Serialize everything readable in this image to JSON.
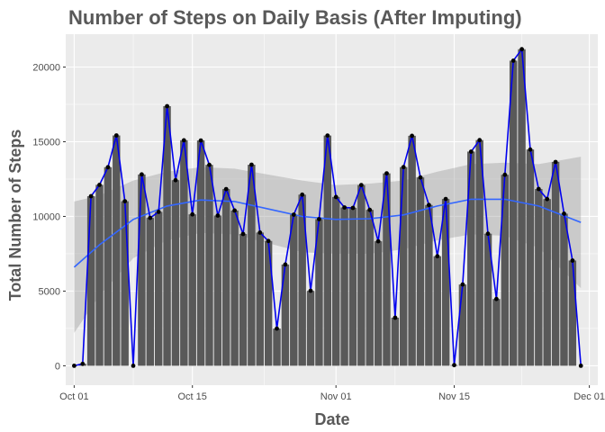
{
  "chart_data": {
    "type": "bar",
    "title": "Number of Steps on Daily Basis (After Imputing)",
    "xlabel": "Date",
    "ylabel": "Total Number of Steps",
    "ylim": [
      -1300,
      22200
    ],
    "xlim": [
      "2012-09-30",
      "2012-12-02"
    ],
    "grid": true,
    "x_ticks": [
      {
        "date": "2012-10-01",
        "label": "Oct 01"
      },
      {
        "date": "2012-10-15",
        "label": "Oct 15"
      },
      {
        "date": "2012-11-01",
        "label": "Nov 01"
      },
      {
        "date": "2012-11-15",
        "label": "Nov 15"
      },
      {
        "date": "2012-12-01",
        "label": "Dec 01"
      }
    ],
    "y_ticks": [
      0,
      5000,
      10000,
      15000,
      20000
    ],
    "series": [
      {
        "type": "bar",
        "dates": [
          "2012-10-01",
          "2012-10-02",
          "2012-10-03",
          "2012-10-04",
          "2012-10-05",
          "2012-10-06",
          "2012-10-07",
          "2012-10-08",
          "2012-10-09",
          "2012-10-10",
          "2012-10-11",
          "2012-10-12",
          "2012-10-13",
          "2012-10-14",
          "2012-10-15",
          "2012-10-16",
          "2012-10-17",
          "2012-10-18",
          "2012-10-19",
          "2012-10-20",
          "2012-10-21",
          "2012-10-22",
          "2012-10-23",
          "2012-10-24",
          "2012-10-25",
          "2012-10-26",
          "2012-10-27",
          "2012-10-28",
          "2012-10-29",
          "2012-10-30",
          "2012-10-31",
          "2012-11-01",
          "2012-11-02",
          "2012-11-03",
          "2012-11-04",
          "2012-11-05",
          "2012-11-06",
          "2012-11-07",
          "2012-11-08",
          "2012-11-09",
          "2012-11-10",
          "2012-11-11",
          "2012-11-12",
          "2012-11-13",
          "2012-11-14",
          "2012-11-15",
          "2012-11-16",
          "2012-11-17",
          "2012-11-18",
          "2012-11-19",
          "2012-11-20",
          "2012-11-21",
          "2012-11-22",
          "2012-11-23",
          "2012-11-24",
          "2012-11-25",
          "2012-11-26",
          "2012-11-27",
          "2012-11-28",
          "2012-11-29",
          "2012-11-30"
        ],
        "values": [
          0,
          126,
          11352,
          12116,
          13294,
          15420,
          11015,
          0,
          12811,
          9900,
          10304,
          17382,
          12426,
          15098,
          10139,
          15084,
          13452,
          10056,
          11829,
          10395,
          8821,
          13460,
          8918,
          8355,
          2492,
          6778,
          10119,
          11458,
          5018,
          9819,
          15414,
          11300,
          10600,
          10571,
          12100,
          10439,
          8334,
          12883,
          3219,
          13300,
          15400,
          12608,
          10765,
          7336,
          11165,
          41,
          5441,
          14339,
          15110,
          8841,
          4472,
          12787,
          20427,
          21194,
          14478,
          11834,
          11162,
          13646,
          10183,
          7047,
          0
        ],
        "color": "#595959"
      },
      {
        "type": "line",
        "values_ref": "bars",
        "color": "#0000ee",
        "points": true
      },
      {
        "type": "smooth",
        "color": "#3366ff",
        "ribbon_color": "#999999",
        "x": [
          "2012-10-01",
          "2012-10-04",
          "2012-10-08",
          "2012-10-12",
          "2012-10-16",
          "2012-10-20",
          "2012-10-24",
          "2012-10-28",
          "2012-11-01",
          "2012-11-05",
          "2012-11-09",
          "2012-11-13",
          "2012-11-17",
          "2012-11-21",
          "2012-11-25",
          "2012-11-30"
        ],
        "fit": [
          6600,
          8100,
          9800,
          10700,
          11100,
          11000,
          10500,
          10000,
          9800,
          9850,
          10100,
          10700,
          11150,
          11150,
          10700,
          9600
        ],
        "lower": [
          2200,
          4700,
          7200,
          8400,
          8900,
          8800,
          8200,
          7600,
          7500,
          7500,
          7800,
          8400,
          8800,
          8700,
          7900,
          5200
        ],
        "upper": [
          11000,
          11400,
          12400,
          13000,
          13300,
          13200,
          12800,
          12400,
          12100,
          12200,
          12400,
          13000,
          13500,
          13600,
          13500,
          14000
        ]
      }
    ]
  }
}
